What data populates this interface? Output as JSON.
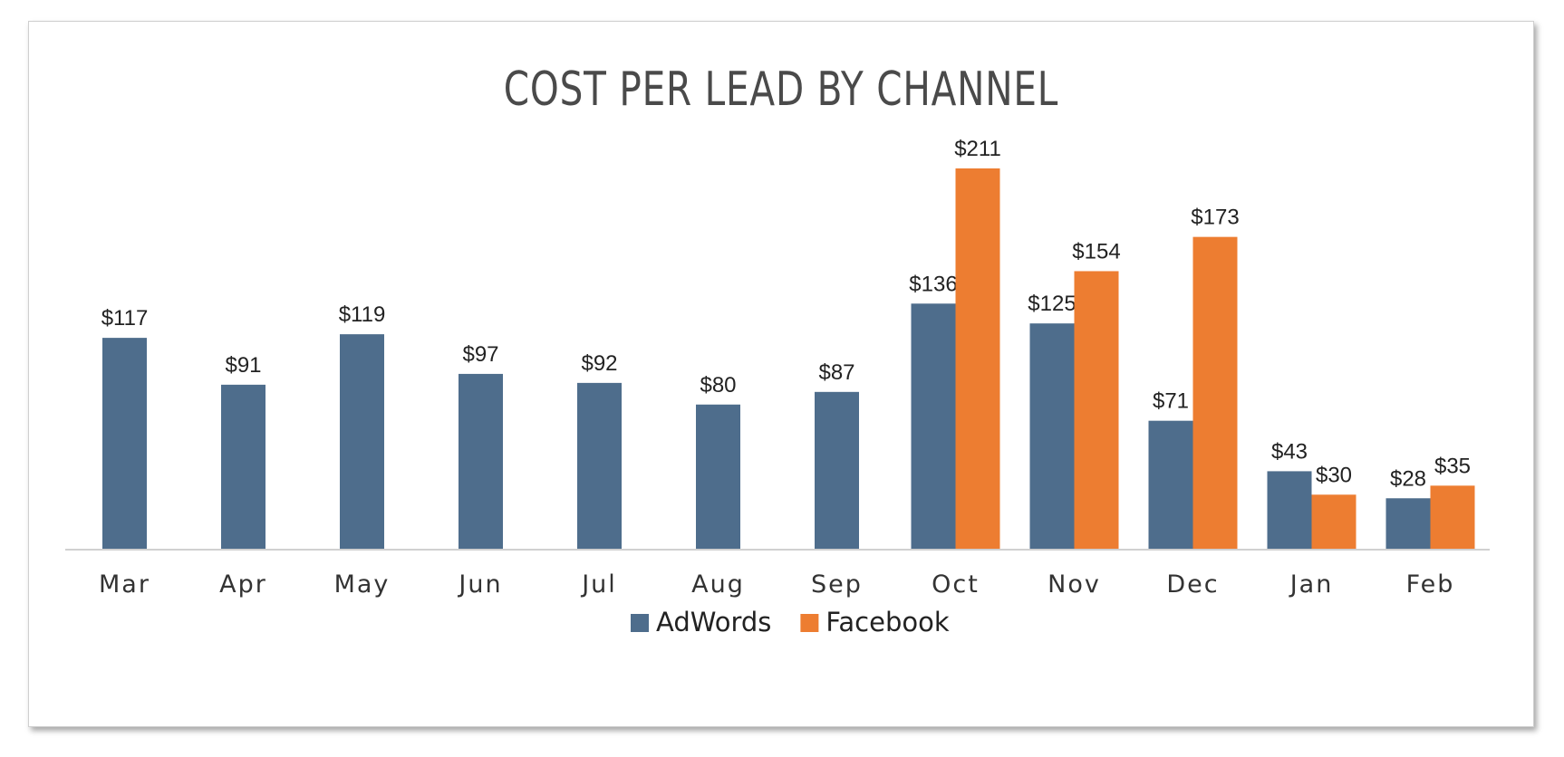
{
  "chart_data": {
    "type": "bar",
    "title": "COST PER LEAD BY CHANNEL",
    "categories": [
      "Mar",
      "Apr",
      "May",
      "Jun",
      "Jul",
      "Aug",
      "Sep",
      "Oct",
      "Nov",
      "Dec",
      "Jan",
      "Feb"
    ],
    "series": [
      {
        "name": "AdWords",
        "color": "#4e6d8c",
        "values": [
          117,
          91,
          119,
          97,
          92,
          80,
          87,
          136,
          125,
          71,
          43,
          28
        ],
        "labels": [
          "$117",
          "$91",
          "$119",
          "$97",
          "$92",
          "$80",
          "$87",
          "$136",
          "$125",
          "$71",
          "$43",
          "$28"
        ]
      },
      {
        "name": "Facebook",
        "color": "#ed7d31",
        "values": [
          null,
          null,
          null,
          null,
          null,
          null,
          null,
          211,
          154,
          173,
          30,
          35
        ],
        "labels": [
          null,
          null,
          null,
          null,
          null,
          null,
          null,
          "$211",
          "$154",
          "$173",
          "$30",
          "$35"
        ]
      }
    ],
    "ylim": [
      0,
      211
    ],
    "grid": false,
    "legend": "bottom-center"
  }
}
